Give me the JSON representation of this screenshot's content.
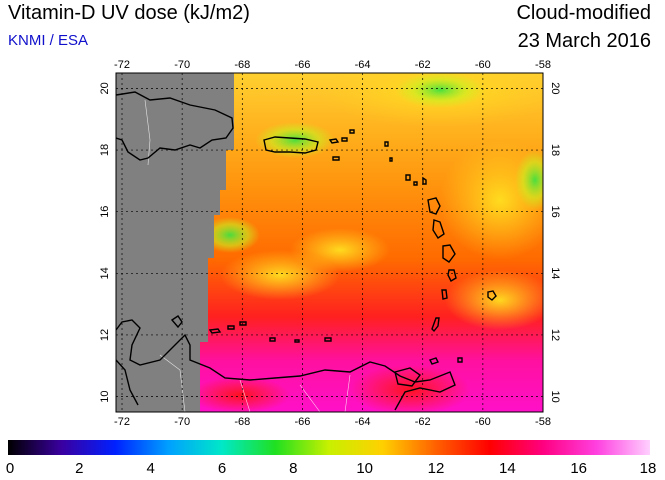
{
  "header": {
    "title": "Vitamin-D UV dose (kJ/m2)",
    "credit": "KNMI / ESA",
    "mode": "Cloud-modified",
    "date": "23 March 2016"
  },
  "map": {
    "lon_range": [
      -72.2,
      -58.0
    ],
    "lat_range": [
      9.5,
      20.5
    ],
    "lon_ticks": [
      "-72",
      "-70",
      "-68",
      "-66",
      "-64",
      "-62",
      "-60",
      "-58"
    ],
    "lat_ticks": [
      "10",
      "12",
      "14",
      "16",
      "18",
      "20"
    ],
    "no_data_color": "#808080",
    "coastline_color": "#000000",
    "grid": "dotted"
  },
  "colorbar": {
    "min": 0,
    "max": 18,
    "ticks": [
      "0",
      "2",
      "4",
      "6",
      "8",
      "10",
      "12",
      "14",
      "16",
      "18"
    ],
    "stops": [
      "#000000",
      "#3a00a0",
      "#0020ff",
      "#00a0ff",
      "#00e8c8",
      "#20e020",
      "#c8f000",
      "#ffd000",
      "#ff6000",
      "#ff0000",
      "#ff0080",
      "#ff40e0",
      "#ffd0ff"
    ]
  }
}
